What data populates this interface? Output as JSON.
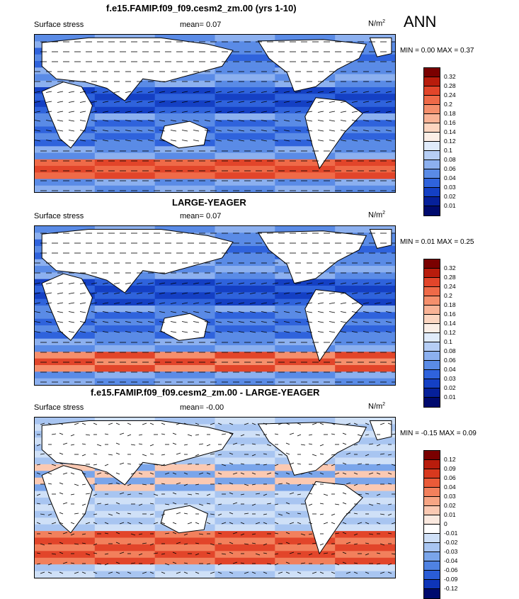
{
  "header": {
    "title": "f.e15.FAMIP.f09_f09.cesm2_zm.00 (yrs 1-10)",
    "season": "ANN"
  },
  "panels": [
    {
      "id": "model",
      "title": "f.e15.FAMIP.f09_f09.cesm2_zm.00 (yrs 1-10)",
      "variable": "Surface stress",
      "mean_label": "mean=",
      "mean_value": "0.07",
      "units": "N/m",
      "units_exp": "2",
      "min_label": "MIN =",
      "min_value": "0.00",
      "max_label": "MAX =",
      "max_value": "0.37",
      "colorbar": [
        "0.32",
        "0.28",
        "0.24",
        "0.2",
        "0.18",
        "0.16",
        "0.14",
        "0.12",
        "0.1",
        "0.08",
        "0.06",
        "0.04",
        "0.03",
        "0.02",
        "0.01"
      ],
      "colors": [
        "#7a0000",
        "#b81c0c",
        "#e2452a",
        "#ef6a48",
        "#f58f6c",
        "#f9b396",
        "#fcd5c0",
        "#fbeee6",
        "#e0ebfa",
        "#b6cef5",
        "#8cb0ef",
        "#5a8be6",
        "#2f63dc",
        "#1440c4",
        "#06209a",
        "#000a6e"
      ]
    },
    {
      "id": "obs",
      "title": "LARGE-YEAGER",
      "variable": "Surface stress",
      "mean_label": "mean=",
      "mean_value": "0.07",
      "units": "N/m",
      "units_exp": "2",
      "min_label": "MIN =",
      "min_value": "0.01",
      "max_label": "MAX =",
      "max_value": "0.25",
      "colorbar": [
        "0.32",
        "0.28",
        "0.24",
        "0.2",
        "0.18",
        "0.16",
        "0.14",
        "0.12",
        "0.1",
        "0.08",
        "0.06",
        "0.04",
        "0.03",
        "0.02",
        "0.01"
      ],
      "colors": [
        "#7a0000",
        "#b81c0c",
        "#e2452a",
        "#ef6a48",
        "#f58f6c",
        "#f9b396",
        "#fcd5c0",
        "#fbeee6",
        "#e0ebfa",
        "#b6cef5",
        "#8cb0ef",
        "#5a8be6",
        "#2f63dc",
        "#1440c4",
        "#06209a",
        "#000a6e"
      ]
    },
    {
      "id": "diff",
      "title": "f.e15.FAMIP.f09_f09.cesm2_zm.00 - LARGE-YEAGER",
      "variable": "Surface stress",
      "mean_label": "mean=",
      "mean_value": "-0.00",
      "units": "N/m",
      "units_exp": "2",
      "min_label": "MIN =",
      "min_value": "-0.15",
      "max_label": "MAX =",
      "max_value": "0.09",
      "colorbar": [
        "0.12",
        "0.09",
        "0.06",
        "0.04",
        "0.03",
        "0.02",
        "0.01",
        "0",
        "-0.01",
        "-0.02",
        "-0.03",
        "-0.04",
        "-0.06",
        "-0.09",
        "-0.12"
      ],
      "colors": [
        "#7a0000",
        "#b81c0c",
        "#d8391e",
        "#ea5a38",
        "#f2805c",
        "#f7a584",
        "#fbc9b2",
        "#fbe9df",
        "#ffffff",
        "#cfe0f7",
        "#a8c5f1",
        "#7aa5ea",
        "#4f82e2",
        "#2a5cd6",
        "#0e35b8",
        "#000a6e"
      ]
    }
  ]
}
